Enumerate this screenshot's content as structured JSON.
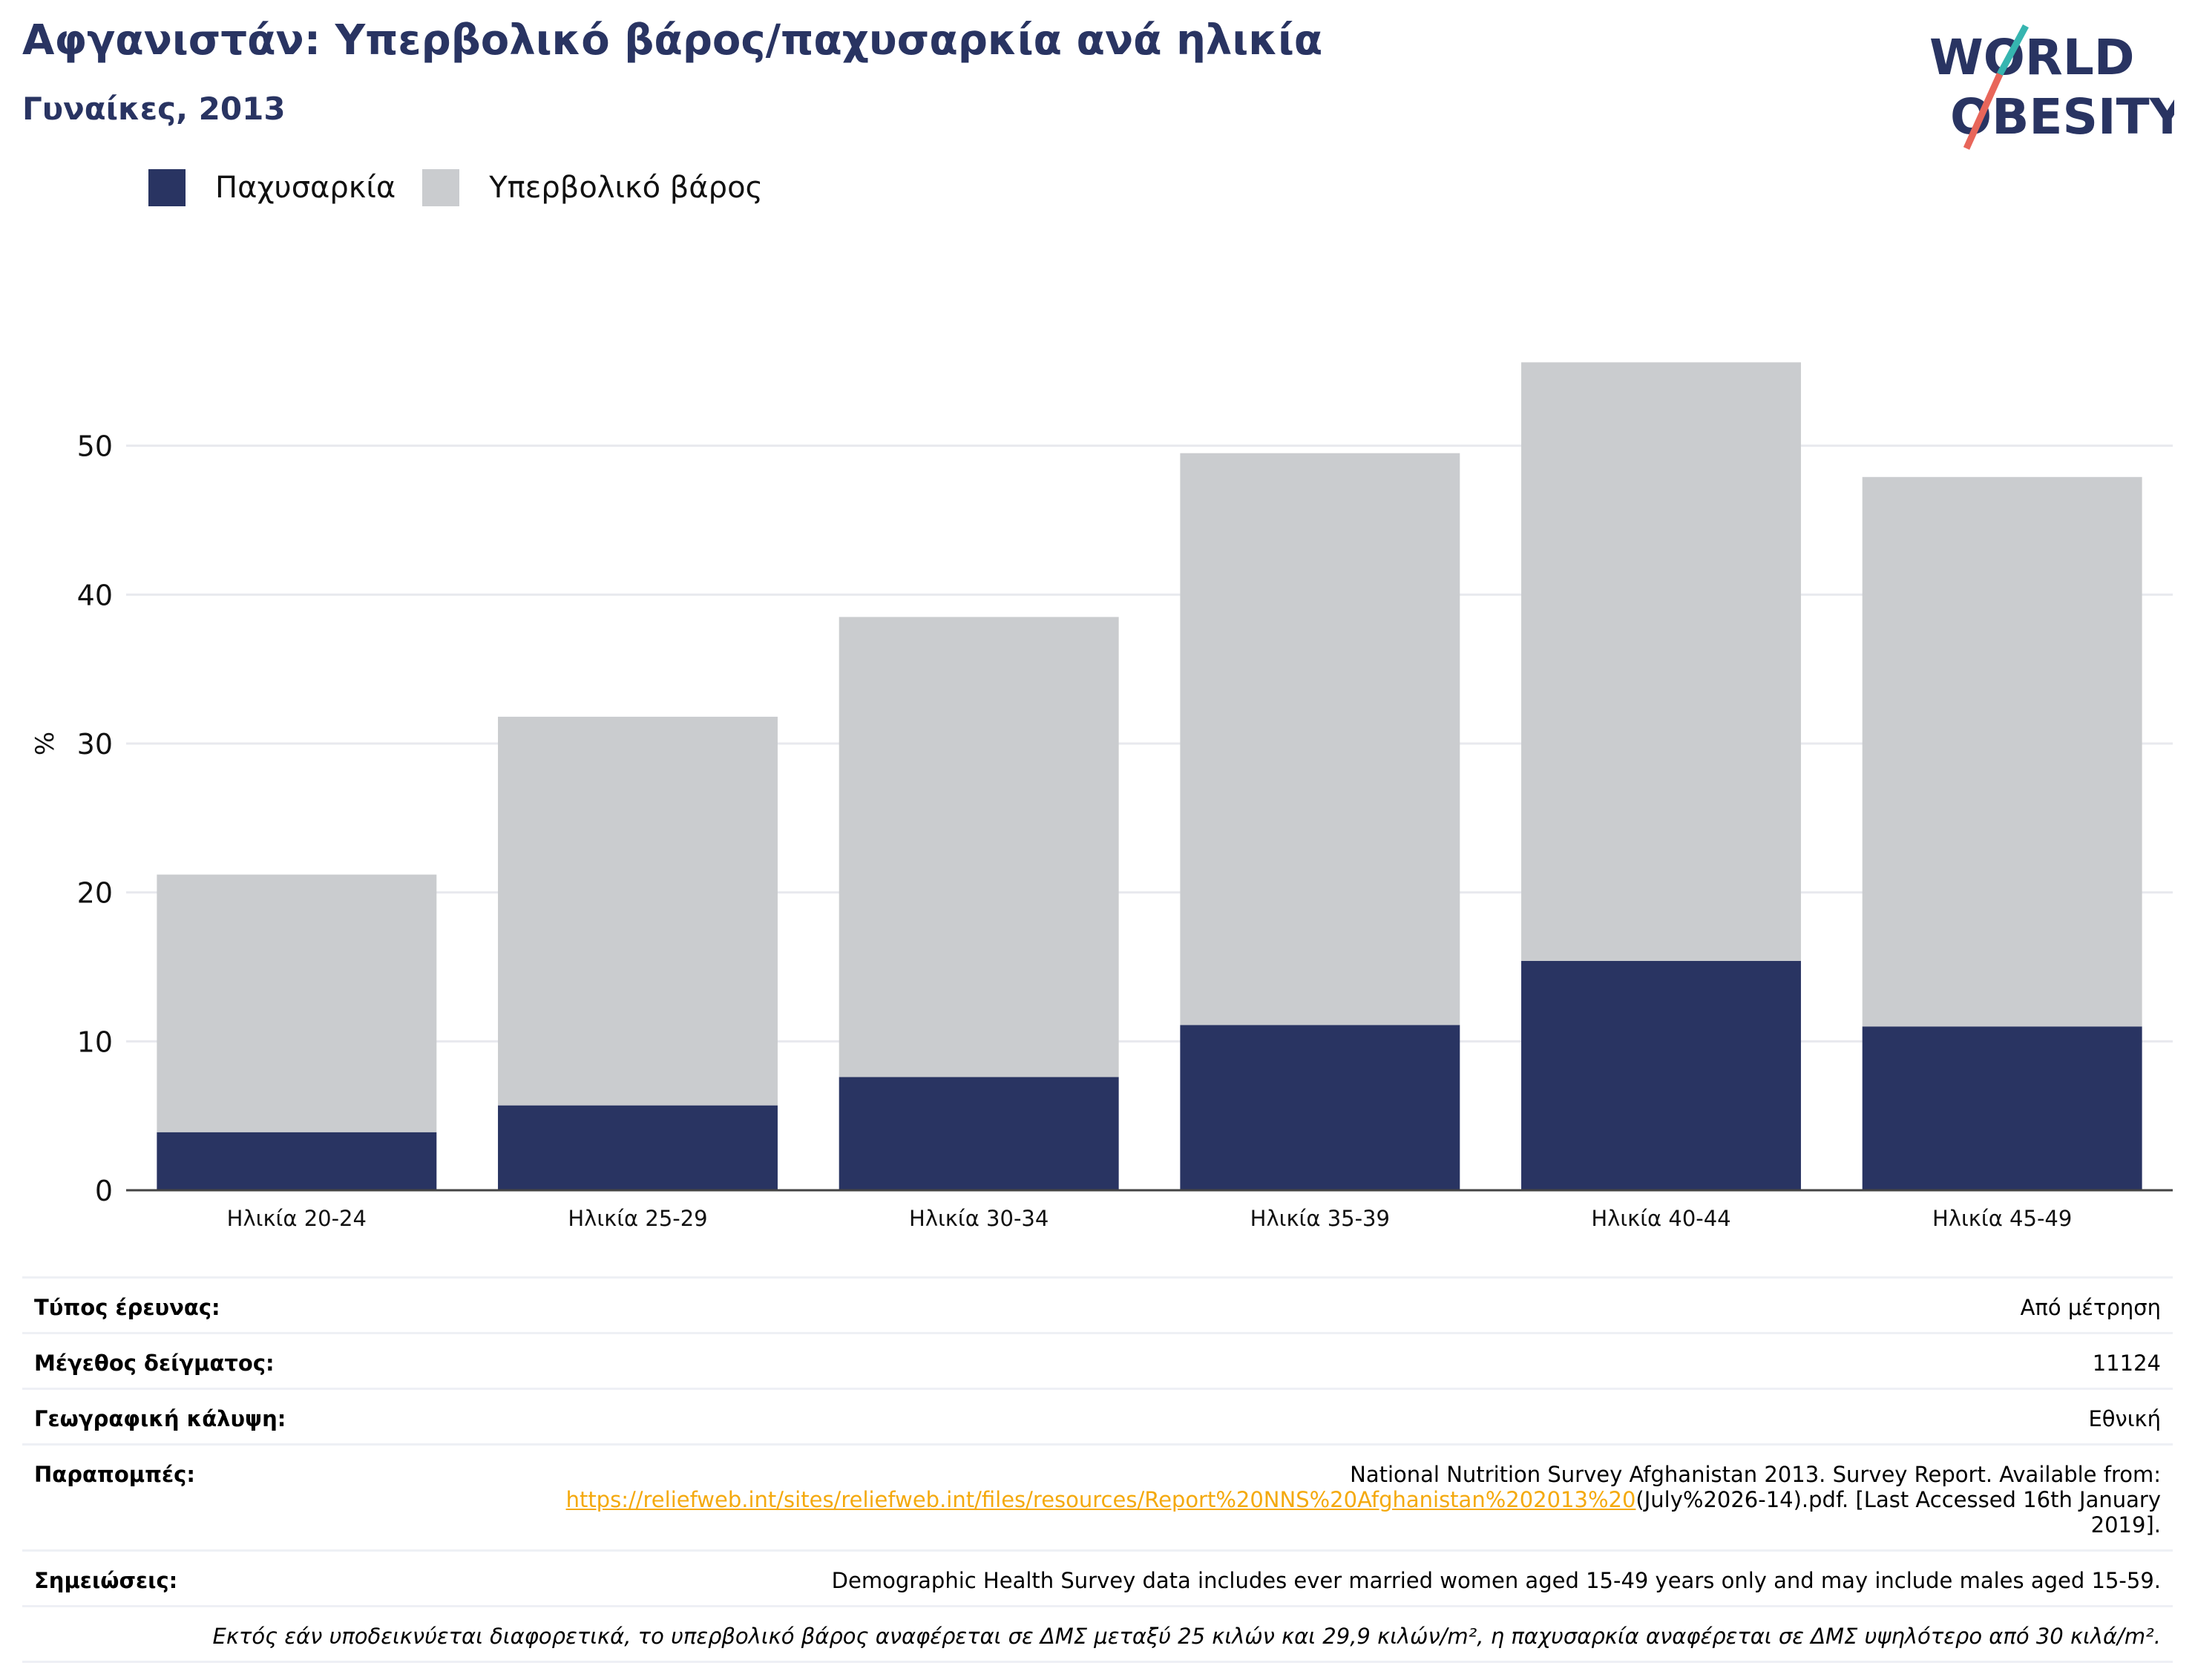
{
  "header": {
    "title": "Αφγανιστάν: Υπερβολικό βάρος/παχυσαρκία ανά ηλικία",
    "subtitle": "Γυναίκες, 2013"
  },
  "logo": {
    "line1": "WORLD",
    "line2": "OBESITY"
  },
  "colors": {
    "obesity": "#293462",
    "overweight": "#cacccf",
    "title": "#293462",
    "link": "#f4a90d"
  },
  "chart_data": {
    "type": "bar",
    "stacked": true,
    "categories": [
      "Ηλικία 20-24",
      "Ηλικία 25-29",
      "Ηλικία 30-34",
      "Ηλικία 35-39",
      "Ηλικία 40-44",
      "Ηλικία 45-49"
    ],
    "series": [
      {
        "name": "Παχυσαρκία",
        "values": [
          3.9,
          5.7,
          7.6,
          11.1,
          15.4,
          11.0
        ]
      },
      {
        "name": "Υπερβολικό βάρος",
        "values": [
          17.3,
          26.1,
          30.9,
          38.4,
          40.2,
          36.9
        ]
      }
    ],
    "ylabel": "%",
    "ylim": [
      0,
      60
    ],
    "yticks": [
      0,
      10,
      20,
      30,
      40,
      50
    ],
    "grid": true,
    "legend": "top-left"
  },
  "meta": {
    "survey_type_label": "Τύπος έρευνας:",
    "survey_type_value": "Από μέτρηση",
    "sample_size_label": "Μέγεθος δείγματος:",
    "sample_size_value": "11124",
    "coverage_label": "Γεωγραφική κάλυψη:",
    "coverage_value": "Εθνική",
    "references_label": "Παραπομπές:",
    "references_text1": "National Nutrition Survey Afghanistan 2013. Survey Report. Available from:",
    "references_link": "https://reliefweb.int/sites/reliefweb.int/files/resources/Report%20NNS%20Afghanistan%202013%20",
    "references_text2": "(July%2026-14).pdf. [Last Accessed 16th January 2019].",
    "notes_label": "Σημειώσεις:",
    "notes_value": "Demographic Health Survey data includes ever married women aged 15-49 years only and may include males aged 15-59.",
    "footnote": "Εκτός εάν υποδεικνύεται διαφορετικά, το υπερβολικό βάρος αναφέρεται σε ΔΜΣ μεταξύ 25 κιλών και 29,9 κιλών/m², η παχυσαρκία αναφέρεται σε ΔΜΣ υψηλότερο από 30 κιλά/m²."
  }
}
